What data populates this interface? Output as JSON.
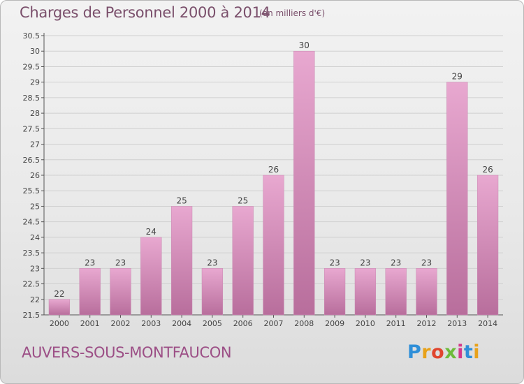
{
  "header": {
    "title": "Charges de Personnel 2000 à 2014",
    "subtitle": "(en milliers d'€)"
  },
  "footer": {
    "commune": "AUVERS-SOUS-MONTFAUCON",
    "logo": [
      "P",
      "r",
      "o",
      "x",
      "i",
      "t",
      "i"
    ]
  },
  "colors": {
    "bar_light": "#e8a8d0",
    "bar_dark": "#b86e9c",
    "grid": "#d0d0d0",
    "text_title": "#7a4f6b"
  },
  "chart_data": {
    "type": "bar",
    "title": "Charges de Personnel 2000 à 2014",
    "subtitle": "(en milliers d'€)",
    "categories": [
      "2000",
      "2001",
      "2002",
      "2003",
      "2004",
      "2005",
      "2006",
      "2007",
      "2008",
      "2009",
      "2010",
      "2011",
      "2012",
      "2013",
      "2014"
    ],
    "values": [
      22,
      23,
      23,
      24,
      25,
      23,
      25,
      26,
      30,
      23,
      23,
      23,
      23,
      29,
      26
    ],
    "data_labels": [
      "22",
      "23",
      "23",
      "24",
      "25",
      "23",
      "25",
      "26",
      "30",
      "23",
      "23",
      "23",
      "23",
      "29",
      "26"
    ],
    "ylim": [
      21.5,
      30.5
    ],
    "yticks": [
      21.5,
      22,
      22.5,
      23,
      23.5,
      24,
      24.5,
      25,
      25.5,
      26,
      26.5,
      27,
      27.5,
      28,
      28.5,
      29,
      29.5,
      30,
      30.5
    ],
    "ytick_labels": [
      "21.5",
      "22",
      "22.5",
      "23",
      "23.5",
      "24",
      "24.5",
      "25",
      "25.5",
      "26",
      "26.5",
      "27",
      "27.5",
      "28",
      "28.5",
      "29",
      "29.5",
      "30",
      "30.5"
    ],
    "grid": true,
    "legend": "none"
  }
}
